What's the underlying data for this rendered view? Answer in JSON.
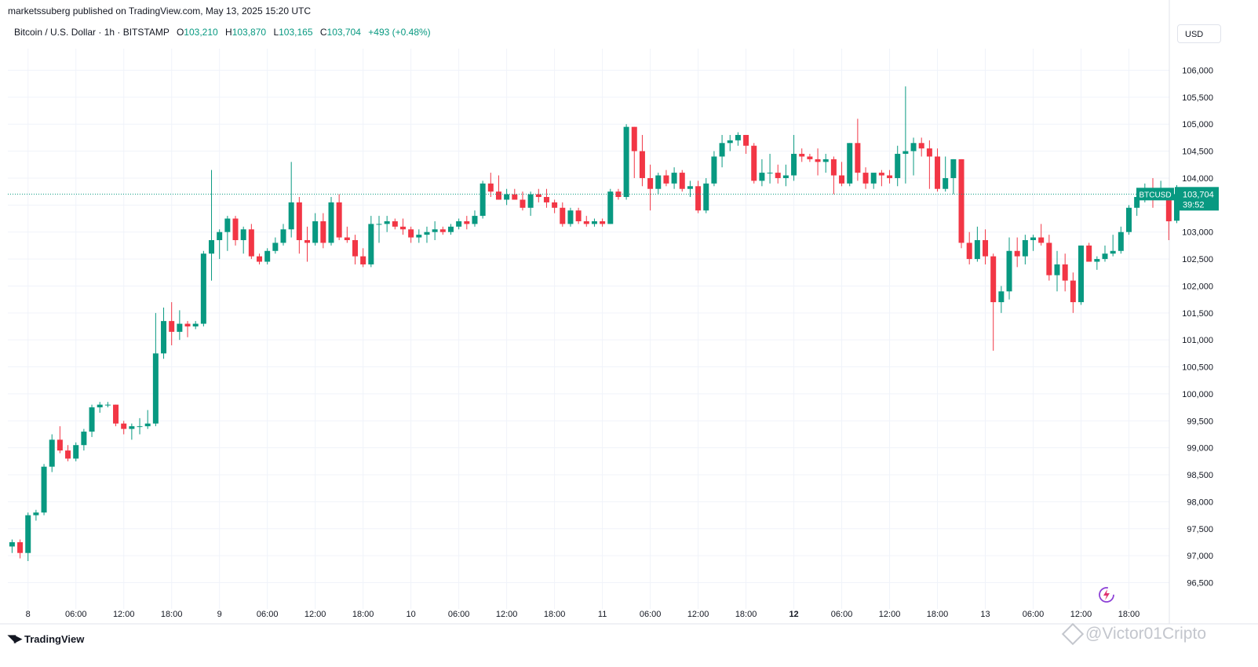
{
  "header": {
    "publisher": "marketssuberg published on TradingView.com, May 13, 2025 15:20 UTC"
  },
  "legend": {
    "symbol": "Bitcoin / U.S. Dollar · 1h · BITSTAMP",
    "open_label": "O",
    "open": "103,210",
    "high_label": "H",
    "high": "103,870",
    "low_label": "L",
    "low": "103,165",
    "close_label": "C",
    "close": "103,704",
    "change": "+493 (+0.48%)"
  },
  "currency_button": "USD",
  "price_tag": {
    "ticker": "BTCUSD",
    "price": "103,704",
    "countdown": "39:52"
  },
  "footer": {
    "brand": "TradingView",
    "watermark": "@Victor01Cripto"
  },
  "colors": {
    "up": "#089981",
    "down": "#f23645",
    "grid": "#f0f3fa",
    "axis_text": "#131722"
  },
  "chart_data": {
    "type": "candlestick",
    "timeframe": "1h",
    "ylim": [
      96100,
      106400
    ],
    "y_ticks": [
      96500,
      97000,
      97500,
      98000,
      98500,
      99000,
      99500,
      100000,
      100500,
      101000,
      101500,
      102000,
      102500,
      103000,
      103500,
      104000,
      104500,
      105000,
      105500,
      106000
    ],
    "x_ticks": [
      {
        "i": 2,
        "label": "8",
        "bold": false
      },
      {
        "i": 8,
        "label": "06:00",
        "bold": false
      },
      {
        "i": 14,
        "label": "12:00",
        "bold": false
      },
      {
        "i": 20,
        "label": "18:00",
        "bold": false
      },
      {
        "i": 26,
        "label": "9",
        "bold": false
      },
      {
        "i": 32,
        "label": "06:00",
        "bold": false
      },
      {
        "i": 38,
        "label": "12:00",
        "bold": false
      },
      {
        "i": 44,
        "label": "18:00",
        "bold": false
      },
      {
        "i": 50,
        "label": "10",
        "bold": false
      },
      {
        "i": 56,
        "label": "06:00",
        "bold": false
      },
      {
        "i": 62,
        "label": "12:00",
        "bold": false
      },
      {
        "i": 68,
        "label": "18:00",
        "bold": false
      },
      {
        "i": 74,
        "label": "11",
        "bold": false
      },
      {
        "i": 80,
        "label": "06:00",
        "bold": false
      },
      {
        "i": 86,
        "label": "12:00",
        "bold": false
      },
      {
        "i": 92,
        "label": "18:00",
        "bold": false
      },
      {
        "i": 98,
        "label": "12",
        "bold": true
      },
      {
        "i": 104,
        "label": "06:00",
        "bold": false
      },
      {
        "i": 110,
        "label": "12:00",
        "bold": false
      },
      {
        "i": 116,
        "label": "18:00",
        "bold": false
      },
      {
        "i": 122,
        "label": "13",
        "bold": false
      },
      {
        "i": 128,
        "label": "06:00",
        "bold": false
      },
      {
        "i": 134,
        "label": "12:00",
        "bold": false
      },
      {
        "i": 140,
        "label": "18:00",
        "bold": false
      }
    ],
    "last_price": 103704,
    "ohlc": [
      [
        97170,
        97300,
        97050,
        97250
      ],
      [
        97250,
        97300,
        96950,
        97050
      ],
      [
        97050,
        97800,
        96900,
        97750
      ],
      [
        97750,
        97850,
        97650,
        97800
      ],
      [
        97800,
        98700,
        97750,
        98650
      ],
      [
        98650,
        99250,
        98550,
        99150
      ],
      [
        99150,
        99400,
        98900,
        98950
      ],
      [
        98950,
        99050,
        98750,
        98800
      ],
      [
        98800,
        99100,
        98750,
        99050
      ],
      [
        99050,
        99350,
        98950,
        99300
      ],
      [
        99300,
        99800,
        99200,
        99750
      ],
      [
        99750,
        99850,
        99650,
        99800
      ],
      [
        99800,
        99850,
        99750,
        99800
      ],
      [
        99800,
        99800,
        99400,
        99450
      ],
      [
        99450,
        99500,
        99250,
        99350
      ],
      [
        99350,
        99450,
        99150,
        99400
      ],
      [
        99400,
        99550,
        99250,
        99400
      ],
      [
        99400,
        99700,
        99350,
        99450
      ],
      [
        99450,
        101500,
        99400,
        100750
      ],
      [
        100750,
        101600,
        100650,
        101350
      ],
      [
        101350,
        101700,
        100900,
        101150
      ],
      [
        101150,
        101550,
        101000,
        101300
      ],
      [
        101300,
        101350,
        101050,
        101250
      ],
      [
        101250,
        101350,
        101200,
        101300
      ],
      [
        101300,
        102650,
        101250,
        102600
      ],
      [
        102600,
        104150,
        102100,
        102850
      ],
      [
        102850,
        103050,
        102500,
        103000
      ],
      [
        103000,
        103300,
        102650,
        103250
      ],
      [
        103250,
        103300,
        102750,
        102850
      ],
      [
        102850,
        103100,
        102600,
        103050
      ],
      [
        103050,
        103150,
        102500,
        102550
      ],
      [
        102550,
        102600,
        102400,
        102450
      ],
      [
        102450,
        102700,
        102400,
        102650
      ],
      [
        102650,
        102900,
        102600,
        102800
      ],
      [
        102800,
        103150,
        102750,
        103050
      ],
      [
        103050,
        104300,
        102900,
        103550
      ],
      [
        103550,
        103650,
        102600,
        102850
      ],
      [
        102850,
        103100,
        102450,
        102800
      ],
      [
        102800,
        103350,
        102750,
        103200
      ],
      [
        103200,
        103350,
        102700,
        102800
      ],
      [
        102800,
        103650,
        102750,
        103550
      ],
      [
        103550,
        103700,
        102850,
        102900
      ],
      [
        102900,
        103100,
        102800,
        102850
      ],
      [
        102850,
        102950,
        102400,
        102550
      ],
      [
        102550,
        102700,
        102350,
        102400
      ],
      [
        102400,
        103300,
        102350,
        103150
      ],
      [
        103150,
        103300,
        102800,
        103150
      ],
      [
        103150,
        103300,
        103000,
        103200
      ],
      [
        103200,
        103250,
        103050,
        103100
      ],
      [
        103100,
        103250,
        102950,
        103050
      ],
      [
        103050,
        103100,
        102800,
        102900
      ],
      [
        102900,
        103050,
        102800,
        102950
      ],
      [
        102950,
        103100,
        102800,
        103000
      ],
      [
        103000,
        103200,
        102850,
        103050
      ],
      [
        103050,
        103100,
        102950,
        103000
      ],
      [
        103000,
        103150,
        102950,
        103100
      ],
      [
        103100,
        103250,
        103050,
        103200
      ],
      [
        103200,
        103300,
        103050,
        103150
      ],
      [
        103150,
        103400,
        103100,
        103300
      ],
      [
        103300,
        103950,
        103250,
        103900
      ],
      [
        103900,
        104100,
        103650,
        103750
      ],
      [
        103750,
        104050,
        103600,
        103600
      ],
      [
        103600,
        103800,
        103500,
        103700
      ],
      [
        103700,
        103800,
        103600,
        103600
      ],
      [
        103600,
        103750,
        103400,
        103450
      ],
      [
        103450,
        103750,
        103300,
        103700
      ],
      [
        103700,
        103800,
        103550,
        103650
      ],
      [
        103650,
        103800,
        103450,
        103550
      ],
      [
        103550,
        103600,
        103350,
        103450
      ],
      [
        103450,
        103550,
        103100,
        103150
      ],
      [
        103150,
        103450,
        103100,
        103400
      ],
      [
        103400,
        103450,
        103150,
        103200
      ],
      [
        103200,
        103300,
        103100,
        103150
      ],
      [
        103150,
        103250,
        103100,
        103200
      ],
      [
        103200,
        103250,
        103100,
        103150
      ],
      [
        103150,
        103800,
        103150,
        103750
      ],
      [
        103750,
        103800,
        103600,
        103650
      ],
      [
        103650,
        105000,
        103600,
        104950
      ],
      [
        104950,
        104950,
        104000,
        104500
      ],
      [
        104500,
        104800,
        103850,
        104000
      ],
      [
        104000,
        104250,
        103400,
        103800
      ],
      [
        103800,
        104100,
        103700,
        104050
      ],
      [
        104050,
        104150,
        103850,
        103900
      ],
      [
        103900,
        104200,
        103800,
        104100
      ],
      [
        104100,
        104150,
        103750,
        103800
      ],
      [
        103800,
        103950,
        103650,
        103850
      ],
      [
        103850,
        103950,
        103350,
        103400
      ],
      [
        103400,
        104000,
        103350,
        103900
      ],
      [
        103900,
        104500,
        103850,
        104400
      ],
      [
        104400,
        104800,
        104200,
        104650
      ],
      [
        104650,
        104800,
        104500,
        104700
      ],
      [
        104700,
        104850,
        104600,
        104800
      ],
      [
        104800,
        104800,
        104450,
        104600
      ],
      [
        104600,
        104650,
        103900,
        103950
      ],
      [
        103950,
        104350,
        103850,
        104100
      ],
      [
        104100,
        104450,
        103900,
        104100
      ],
      [
        104100,
        104250,
        103900,
        104000
      ],
      [
        104000,
        104250,
        103850,
        104050
      ],
      [
        104050,
        104800,
        103950,
        104450
      ],
      [
        104450,
        104550,
        104300,
        104400
      ],
      [
        104400,
        104450,
        104300,
        104350
      ],
      [
        104350,
        104550,
        104050,
        104300
      ],
      [
        104300,
        104450,
        104100,
        104350
      ],
      [
        104350,
        104400,
        103700,
        104050
      ],
      [
        104050,
        104300,
        103850,
        103900
      ],
      [
        103900,
        104650,
        103850,
        104650
      ],
      [
        104650,
        105100,
        103950,
        104100
      ],
      [
        104100,
        104200,
        103800,
        103900
      ],
      [
        103900,
        104050,
        103800,
        104100
      ],
      [
        104100,
        104150,
        103850,
        104050
      ],
      [
        104050,
        104150,
        103900,
        104000
      ],
      [
        104000,
        104600,
        103850,
        104450
      ],
      [
        104450,
        105700,
        103900,
        104500
      ],
      [
        104500,
        104750,
        104050,
        104650
      ],
      [
        104650,
        104750,
        104400,
        104550
      ],
      [
        104550,
        104700,
        103800,
        104400
      ],
      [
        104400,
        104550,
        103750,
        103800
      ],
      [
        103800,
        104400,
        103750,
        104000
      ],
      [
        104000,
        104350,
        103700,
        104350
      ],
      [
        104350,
        104350,
        102700,
        102800
      ],
      [
        102800,
        103000,
        102400,
        102500
      ],
      [
        102500,
        103100,
        102450,
        102850
      ],
      [
        102850,
        103050,
        102400,
        102550
      ],
      [
        102550,
        102600,
        100800,
        101700
      ],
      [
        101700,
        102000,
        101500,
        101900
      ],
      [
        101900,
        102900,
        101750,
        102650
      ],
      [
        102650,
        102900,
        102350,
        102550
      ],
      [
        102550,
        102950,
        102400,
        102850
      ],
      [
        102850,
        102950,
        102650,
        102900
      ],
      [
        102900,
        103150,
        102750,
        102800
      ],
      [
        102800,
        102950,
        102100,
        102200
      ],
      [
        102200,
        102650,
        101900,
        102400
      ],
      [
        102400,
        102600,
        101900,
        102100
      ],
      [
        102100,
        102250,
        101500,
        101700
      ],
      [
        101700,
        102750,
        101650,
        102750
      ],
      [
        102750,
        102800,
        102450,
        102450
      ],
      [
        102450,
        102550,
        102300,
        102500
      ],
      [
        102500,
        102750,
        102450,
        102600
      ],
      [
        102600,
        102950,
        102550,
        102650
      ],
      [
        102650,
        103100,
        102600,
        103000
      ],
      [
        103000,
        103500,
        102950,
        103450
      ],
      [
        103450,
        103700,
        103300,
        103650
      ],
      [
        103650,
        103900,
        103550,
        103750
      ],
      [
        103750,
        104000,
        103450,
        103700
      ],
      [
        103700,
        103950,
        103600,
        103700
      ],
      [
        103700,
        103750,
        102850,
        103200
      ],
      [
        103210,
        103870,
        103165,
        103704
      ]
    ]
  }
}
